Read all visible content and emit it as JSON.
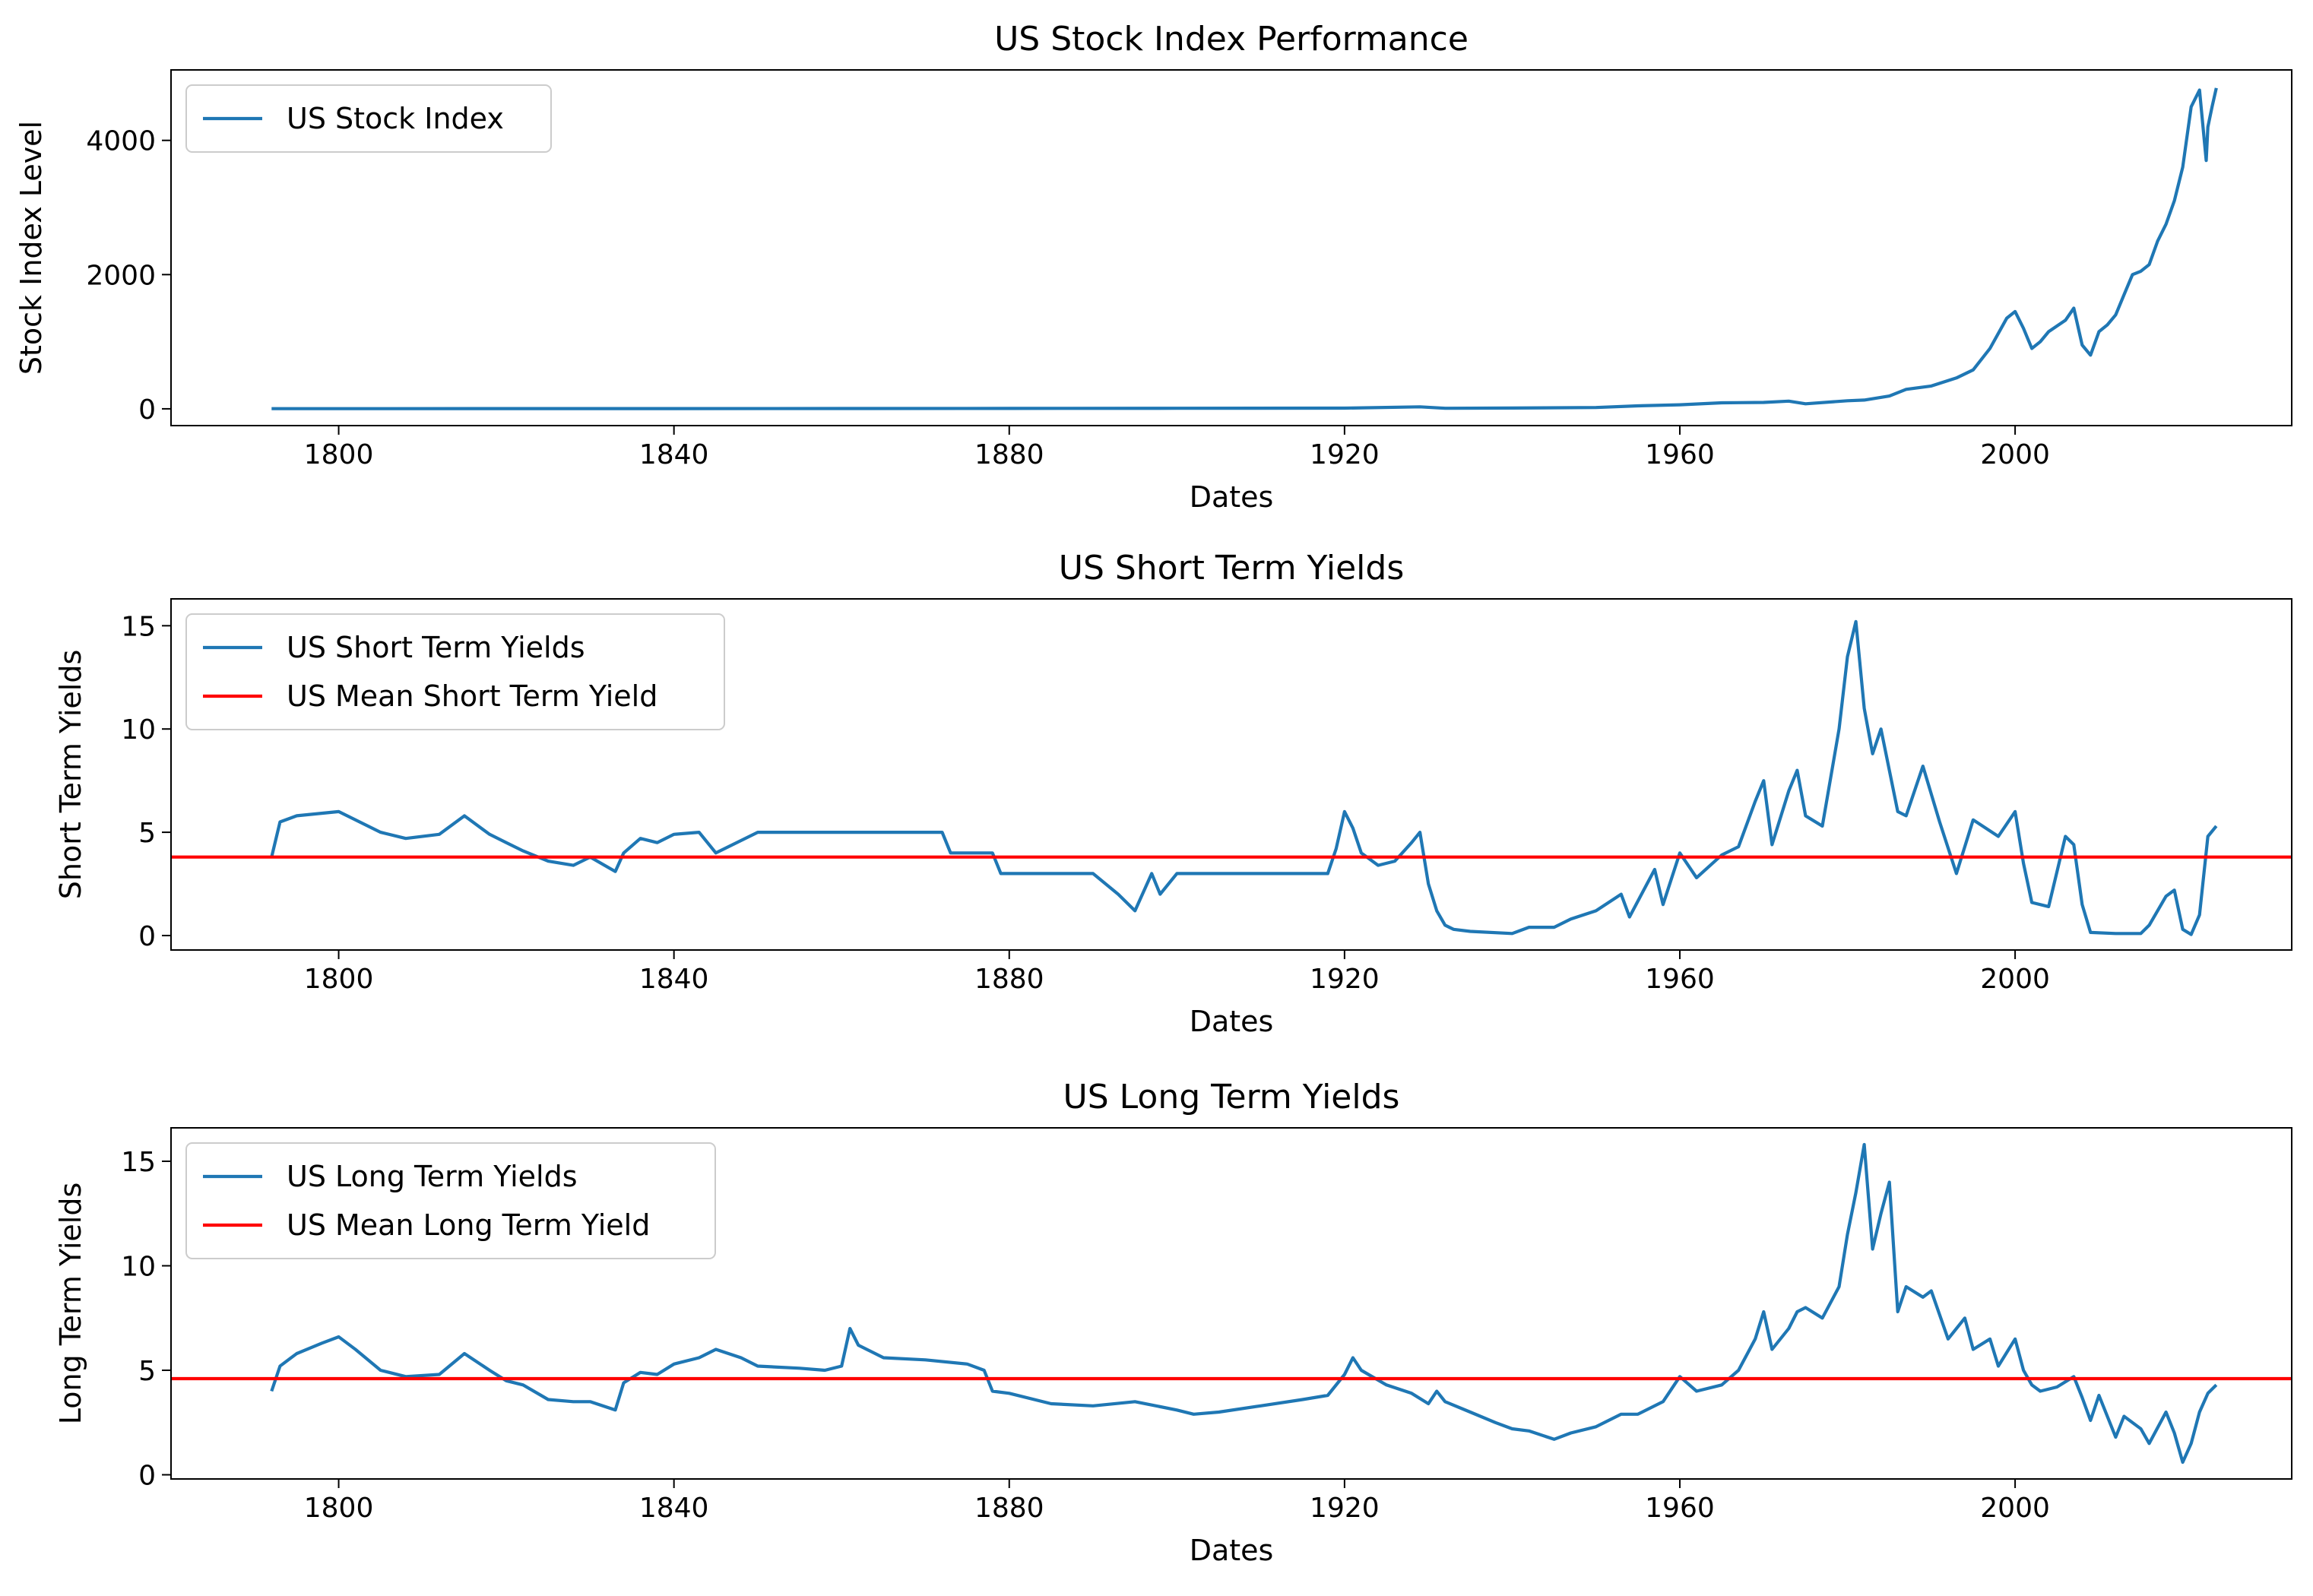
{
  "chart_data": [
    {
      "type": "line",
      "title": "US Stock Index Performance",
      "xlabel": "Dates",
      "ylabel": "Stock Index Level",
      "xlim": [
        1780,
        2033
      ],
      "ylim": [
        -250,
        5050
      ],
      "xticks": [
        1800,
        1840,
        1880,
        1920,
        1960,
        2000
      ],
      "yticks": [
        0,
        2000,
        4000
      ],
      "legend_position": "upper-left",
      "series": [
        {
          "name": "US Stock Index",
          "color": "#1f77b4",
          "x": [
            1792,
            1800,
            1820,
            1840,
            1860,
            1880,
            1900,
            1920,
            1929,
            1932,
            1940,
            1950,
            1955,
            1960,
            1965,
            1970,
            1973,
            1975,
            1980,
            1982,
            1985,
            1987,
            1990,
            1993,
            1995,
            1997,
            1999,
            2000,
            2001,
            2002,
            2003,
            2004,
            2006,
            2007,
            2008,
            2009,
            2010,
            2011,
            2012,
            2013,
            2014,
            2015,
            2016,
            2017,
            2018,
            2019,
            2020,
            2021,
            2022,
            2022.8,
            2023,
            2023.5,
            2024
          ],
          "values": [
            3,
            3,
            4,
            4,
            5,
            6,
            8,
            10,
            30,
            8,
            12,
            20,
            45,
            60,
            90,
            95,
            115,
            75,
            120,
            130,
            190,
            290,
            340,
            460,
            580,
            900,
            1350,
            1450,
            1200,
            900,
            1000,
            1150,
            1320,
            1500,
            950,
            800,
            1150,
            1250,
            1400,
            1700,
            2000,
            2050,
            2150,
            2500,
            2750,
            3100,
            3600,
            4500,
            4750,
            3700,
            4200,
            4500,
            4780
          ]
        }
      ]
    },
    {
      "type": "line",
      "title": "US Short Term Yields",
      "xlabel": "Dates",
      "ylabel": "Short Term Yields",
      "xlim": [
        1780,
        2033
      ],
      "ylim": [
        -0.7,
        16.3
      ],
      "xticks": [
        1800,
        1840,
        1880,
        1920,
        1960,
        2000
      ],
      "yticks": [
        0,
        5,
        10,
        15
      ],
      "legend_position": "upper-left",
      "series": [
        {
          "name": "US Short Term Yields",
          "color": "#1f77b4",
          "x": [
            1792,
            1793,
            1795,
            1800,
            1802,
            1805,
            1808,
            1812,
            1815,
            1818,
            1820,
            1822,
            1825,
            1828,
            1830,
            1833,
            1834,
            1836,
            1838,
            1840,
            1843,
            1845,
            1850,
            1855,
            1860,
            1865,
            1870,
            1872,
            1873,
            1876,
            1878,
            1879,
            1880,
            1885,
            1890,
            1893,
            1895,
            1897,
            1898,
            1900,
            1910,
            1915,
            1918,
            1919,
            1920,
            1921,
            1922,
            1924,
            1926,
            1928,
            1929,
            1930,
            1931,
            1932,
            1933,
            1935,
            1940,
            1942,
            1945,
            1947,
            1950,
            1953,
            1954,
            1957,
            1958,
            1960,
            1962,
            1965,
            1967,
            1969,
            1970,
            1971,
            1973,
            1974,
            1975,
            1977,
            1979,
            1980,
            1981,
            1982,
            1983,
            1984,
            1986,
            1987,
            1989,
            1991,
            1993,
            1995,
            1998,
            2000,
            2001,
            2002,
            2004,
            2006,
            2007,
            2008,
            2009,
            2012,
            2015,
            2016,
            2018,
            2019,
            2020,
            2021,
            2022,
            2023,
            2024
          ],
          "values": [
            3.8,
            5.5,
            5.8,
            6.0,
            5.6,
            5.0,
            4.7,
            4.9,
            5.8,
            4.9,
            4.5,
            4.1,
            3.6,
            3.4,
            3.8,
            3.1,
            4.0,
            4.7,
            4.5,
            4.9,
            5.0,
            4.0,
            5.0,
            5.0,
            5.0,
            5.0,
            5.0,
            5.0,
            4.0,
            4.0,
            4.0,
            3.0,
            3.0,
            3.0,
            3.0,
            2.0,
            1.2,
            3.0,
            2.0,
            3.0,
            3.0,
            3.0,
            3.0,
            4.2,
            6.0,
            5.2,
            4.0,
            3.4,
            3.6,
            4.5,
            5.0,
            2.5,
            1.2,
            0.5,
            0.3,
            0.2,
            0.1,
            0.4,
            0.4,
            0.8,
            1.2,
            2.0,
            0.9,
            3.2,
            1.5,
            4.0,
            2.8,
            3.9,
            4.3,
            6.5,
            7.5,
            4.4,
            7.0,
            8.0,
            5.8,
            5.3,
            10.0,
            13.5,
            15.2,
            11.0,
            8.8,
            10.0,
            6.0,
            5.8,
            8.2,
            5.5,
            3.0,
            5.6,
            4.8,
            6.0,
            3.5,
            1.6,
            1.4,
            4.8,
            4.4,
            1.5,
            0.15,
            0.1,
            0.1,
            0.5,
            1.9,
            2.2,
            0.3,
            0.05,
            1.0,
            4.8,
            5.3
          ],
          "mean_line": {
            "name": "US Mean Short Term Yield",
            "color": "#ff0000",
            "value": 3.8
          }
        },
        {
          "name": "US Mean Short Term Yield",
          "color": "#ff0000"
        }
      ]
    },
    {
      "type": "line",
      "title": "US Long Term Yields",
      "xlabel": "Dates",
      "ylabel": "Long Term Yields",
      "xlim": [
        1780,
        2033
      ],
      "ylim": [
        -0.2,
        16.6
      ],
      "xticks": [
        1800,
        1840,
        1880,
        1920,
        1960,
        2000
      ],
      "yticks": [
        0,
        5,
        10,
        15
      ],
      "legend_position": "upper-left",
      "series": [
        {
          "name": "US Long Term Yields",
          "color": "#1f77b4",
          "x": [
            1792,
            1793,
            1795,
            1798,
            1800,
            1802,
            1805,
            1808,
            1812,
            1815,
            1818,
            1820,
            1822,
            1825,
            1828,
            1830,
            1833,
            1834,
            1836,
            1838,
            1840,
            1843,
            1845,
            1848,
            1850,
            1855,
            1858,
            1860,
            1861,
            1862,
            1865,
            1870,
            1875,
            1877,
            1878,
            1880,
            1885,
            1890,
            1895,
            1900,
            1902,
            1905,
            1910,
            1915,
            1918,
            1920,
            1921,
            1922,
            1925,
            1928,
            1930,
            1931,
            1932,
            1935,
            1938,
            1940,
            1942,
            1945,
            1947,
            1950,
            1953,
            1955,
            1958,
            1960,
            1962,
            1965,
            1967,
            1969,
            1970,
            1971,
            1973,
            1974,
            1975,
            1977,
            1979,
            1980,
            1981,
            1982,
            1983,
            1984,
            1985,
            1986,
            1987,
            1989,
            1990,
            1992,
            1994,
            1995,
            1997,
            1998,
            2000,
            2001,
            2002,
            2003,
            2005,
            2007,
            2008,
            2009,
            2010,
            2012,
            2013,
            2015,
            2016,
            2018,
            2019,
            2020,
            2021,
            2022,
            2023,
            2024
          ],
          "values": [
            4.0,
            5.2,
            5.8,
            6.3,
            6.6,
            6.0,
            5.0,
            4.7,
            4.8,
            5.8,
            5.0,
            4.5,
            4.3,
            3.6,
            3.5,
            3.5,
            3.1,
            4.4,
            4.9,
            4.8,
            5.3,
            5.6,
            6.0,
            5.6,
            5.2,
            5.1,
            5.0,
            5.2,
            7.0,
            6.2,
            5.6,
            5.5,
            5.3,
            5.0,
            4.0,
            3.9,
            3.4,
            3.3,
            3.5,
            3.1,
            2.9,
            3.0,
            3.3,
            3.6,
            3.8,
            4.8,
            5.6,
            5.0,
            4.3,
            3.9,
            3.4,
            4.0,
            3.5,
            3.0,
            2.5,
            2.2,
            2.1,
            1.7,
            2.0,
            2.3,
            2.9,
            2.9,
            3.5,
            4.7,
            4.0,
            4.3,
            5.0,
            6.5,
            7.8,
            6.0,
            7.0,
            7.8,
            8.0,
            7.5,
            9.0,
            11.5,
            13.5,
            15.8,
            10.8,
            12.5,
            14.0,
            7.8,
            9.0,
            8.5,
            8.8,
            6.5,
            7.5,
            6.0,
            6.5,
            5.2,
            6.5,
            5.0,
            4.3,
            4.0,
            4.2,
            4.7,
            3.7,
            2.6,
            3.8,
            1.8,
            2.8,
            2.2,
            1.5,
            3.0,
            2.0,
            0.6,
            1.5,
            3.0,
            3.9,
            4.3
          ],
          "mean_line": {
            "name": "US Mean Long Term Yield",
            "color": "#ff0000",
            "value": 4.6
          }
        },
        {
          "name": "US Mean Long Term Yield",
          "color": "#ff0000"
        }
      ]
    }
  ]
}
